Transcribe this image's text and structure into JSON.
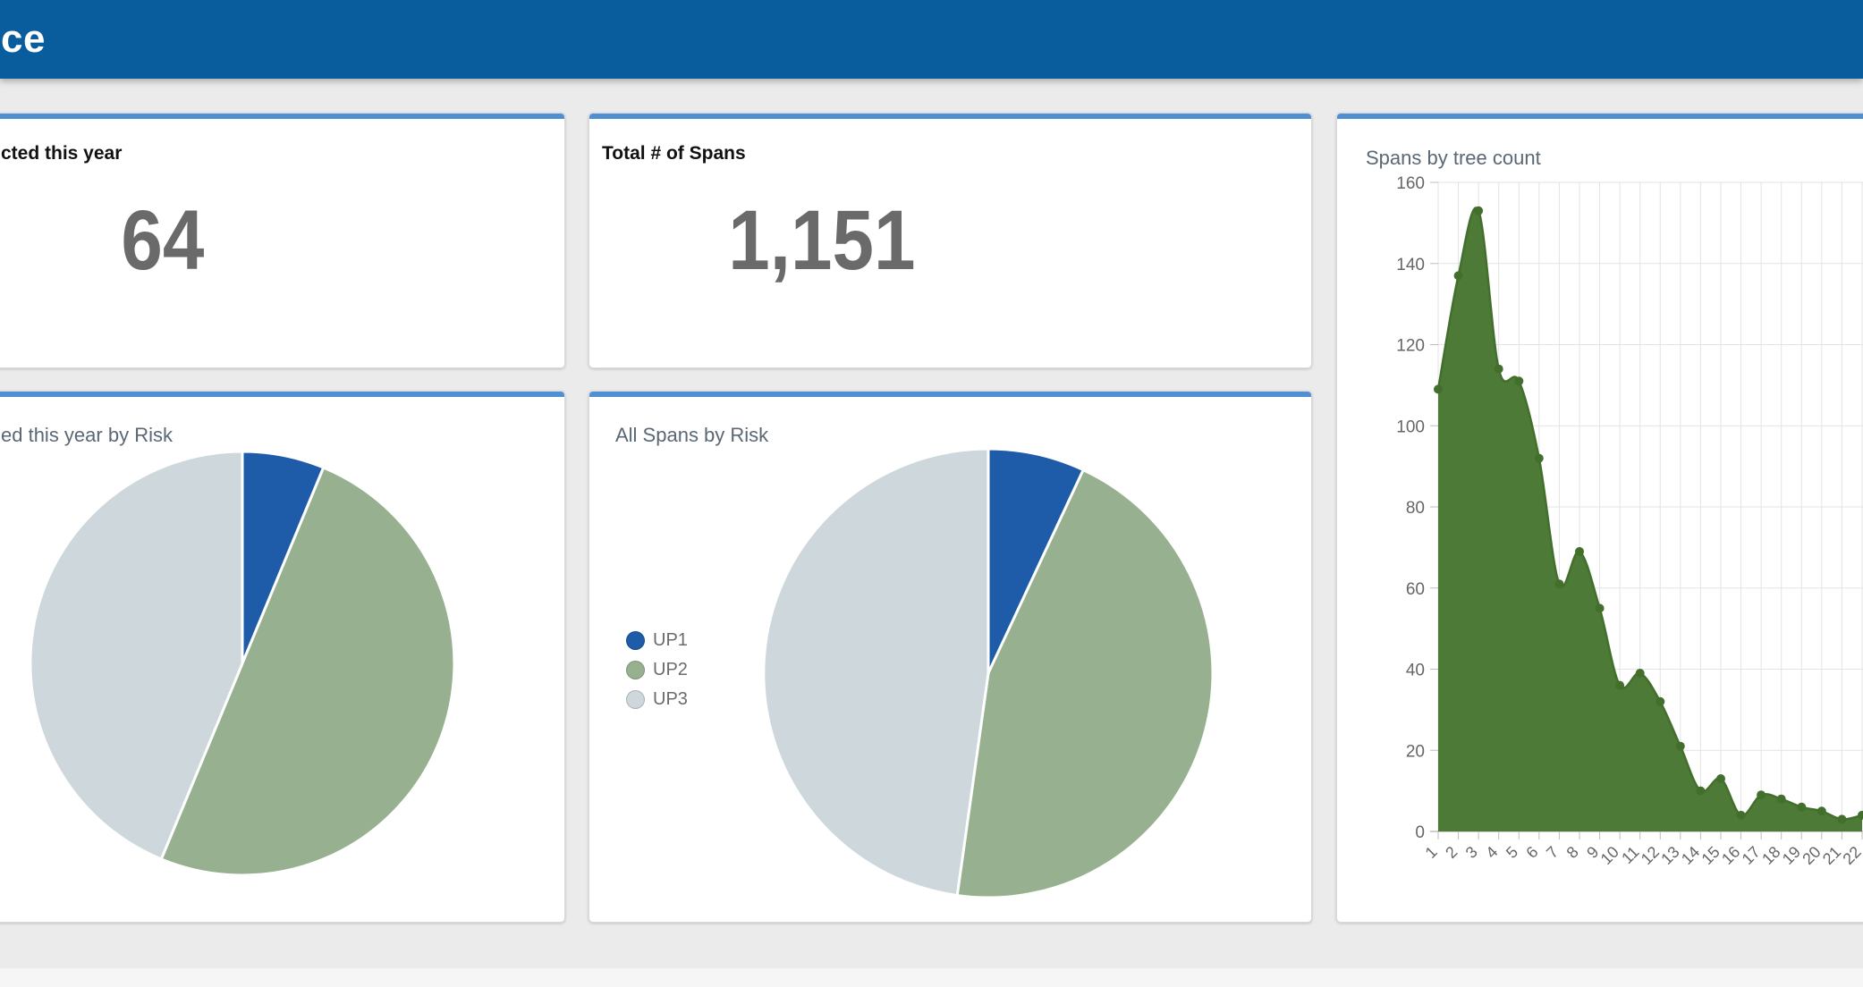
{
  "header": {
    "brand_fragment": "ce",
    "bg": "#0a5d9d"
  },
  "colors": {
    "card_accent": "#4f8fd2",
    "up1": "#1e5ca9",
    "up2": "#97b190",
    "up3": "#cdd7dc",
    "area_fill": "#4e7a38",
    "area_line": "#436f2d",
    "grid": "#e3e3e3",
    "axis": "#bdbdbd",
    "tick_text": "#666666",
    "title_muted": "#5a6875",
    "big_number": "#6a6a6a",
    "legend_text": "#6b6b6b"
  },
  "cards": {
    "collected_year": {
      "title_fragment": "cted this year",
      "value": "64"
    },
    "total_spans": {
      "title": "Total # of Spans",
      "value": "1,151"
    },
    "collected_by_risk": {
      "title_fragment": "ed this year by Risk"
    },
    "all_spans_by_risk": {
      "title": "All Spans by Risk"
    },
    "spans_by_tree": {
      "title": "Spans by tree count"
    }
  },
  "legend": {
    "items": [
      {
        "label": "UP1",
        "color": "#1e5ca9"
      },
      {
        "label": "UP2",
        "color": "#97b190"
      },
      {
        "label": "UP3",
        "color": "#cdd7dc"
      }
    ]
  },
  "chart_data": [
    {
      "type": "pie",
      "title_fragment": "ed this year by Risk",
      "labels": [
        "UP1",
        "UP2",
        "UP3"
      ],
      "values": [
        4,
        32,
        28
      ],
      "colors": [
        "#1e5ca9",
        "#97b190",
        "#cdd7dc"
      ],
      "start_angle_deg": 0,
      "direction": "clockwise",
      "legend_visible": false
    },
    {
      "type": "pie",
      "title": "All Spans by Risk",
      "labels": [
        "UP1",
        "UP2",
        "UP3"
      ],
      "values": [
        80,
        521,
        550
      ],
      "colors": [
        "#1e5ca9",
        "#97b190",
        "#cdd7dc"
      ],
      "start_angle_deg": 0,
      "direction": "clockwise",
      "legend_visible": true,
      "legend_position": "left"
    },
    {
      "type": "area",
      "title": "Spans by tree count",
      "x": [
        1,
        2,
        3,
        4,
        5,
        6,
        7,
        8,
        9,
        10,
        11,
        12,
        13,
        14,
        15,
        16,
        17,
        18,
        19,
        20,
        21,
        22
      ],
      "values": [
        109,
        137,
        153,
        114,
        111,
        92,
        61,
        69,
        55,
        36,
        39,
        32,
        21,
        10,
        13,
        4,
        9,
        8,
        6,
        5,
        3,
        4
      ],
      "xlabel": "",
      "ylabel": "",
      "ylim": [
        0,
        160
      ],
      "ytick_step": 20,
      "grid": true,
      "x_labels_rotated_deg": -45,
      "legend_position": "none"
    }
  ]
}
